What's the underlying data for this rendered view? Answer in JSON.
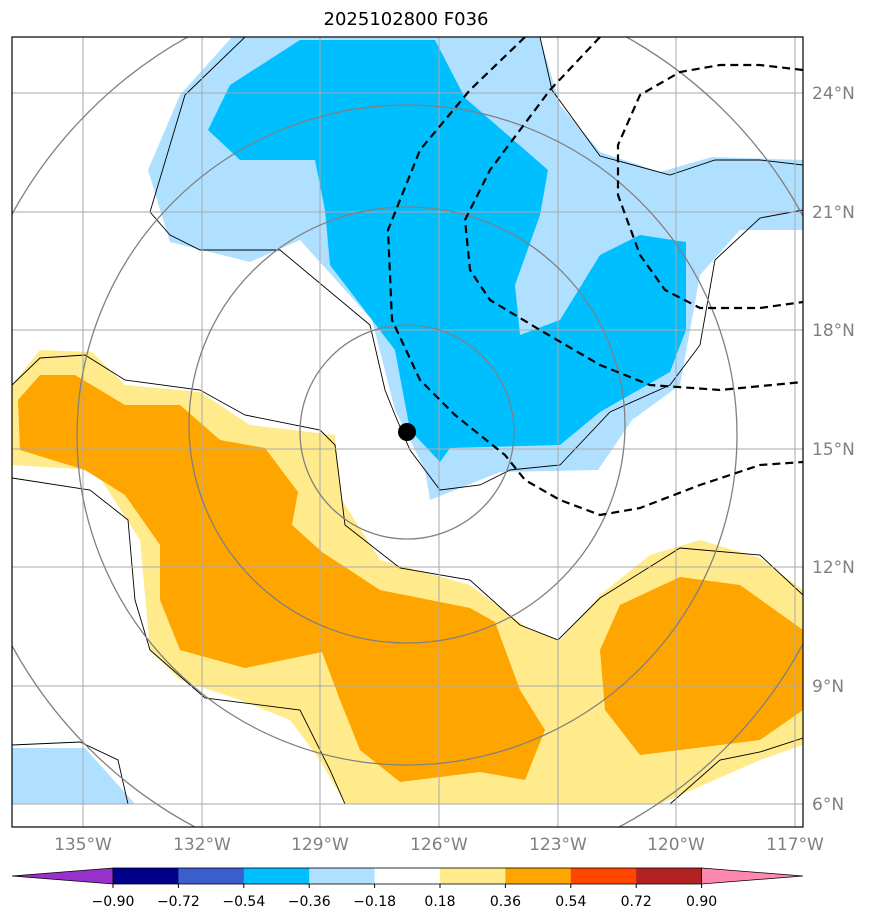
{
  "title": "2025102800 F036",
  "lat_labels": [
    "24°N",
    "21°N",
    "18°N",
    "15°N",
    "12°N",
    "9°N",
    "6°N"
  ],
  "lon_labels": [
    "135°W",
    "132°W",
    "129°W",
    "126°W",
    "123°W",
    "120°W",
    "117°W"
  ],
  "colorbar": {
    "ticks": [
      "−0.90",
      "−0.72",
      "−0.54",
      "−0.36",
      "−0.18",
      "0.18",
      "0.36",
      "0.54",
      "0.72",
      "0.90"
    ],
    "colors": [
      "#9932CC",
      "#00008B",
      "#3A5FCD",
      "#00BFFF",
      "#B0E0FF",
      "#FFFFFF",
      "#FFEB8C",
      "#FFA500",
      "#FF4500",
      "#B22222",
      "#FF88B0"
    ]
  },
  "palette": {
    "neg_light": "#B0E0FF",
    "neg_mid": "#00BFFF",
    "pos_light": "#FFEB8C",
    "pos_mid": "#FFA500"
  },
  "storm_marker": {
    "lat": 15.4,
    "lon": -126.8
  }
}
